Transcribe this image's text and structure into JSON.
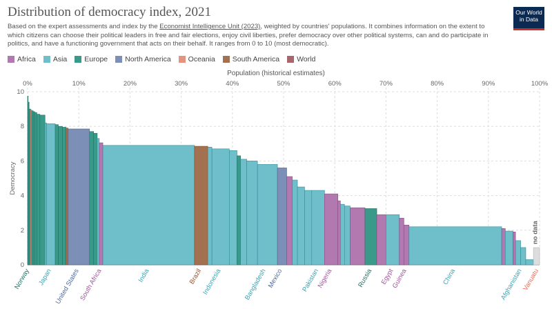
{
  "title": "Distribution of democracy index, 2021",
  "subtitle_before": "Based on the expert assessments and index by the ",
  "subtitle_source": "Economist Intelligence Unit (2023)",
  "subtitle_after": ", weighted by countries' populations. It combines information on the extent to which citizens can choose their political leaders in free and fair elections, enjoy civil liberties, prefer democracy over other political systems, can and do participate in politics, and have a functioning government that acts on their behalf. It ranges from 0 to 10 (most democratic).",
  "logo": {
    "line1": "Our World",
    "line2": "in Data"
  },
  "chart_data": {
    "type": "bar",
    "title": "Distribution of democracy index, 2021",
    "xlabel": "Population (historical estimates)",
    "ylabel": "Democracy",
    "xlim": [
      0,
      100
    ],
    "ylim": [
      0,
      10
    ],
    "x_ticks": [
      "0%",
      "10%",
      "20%",
      "30%",
      "40%",
      "50%",
      "60%",
      "70%",
      "80%",
      "90%",
      "100%"
    ],
    "y_ticks": [
      "0",
      "2",
      "4",
      "6",
      "8",
      "10"
    ],
    "legend": [
      {
        "name": "Africa",
        "color": "#a2559c"
      },
      {
        "name": "Asia",
        "color": "#00847e"
      },
      {
        "name": "Europe",
        "color": "#4c6a9c"
      },
      {
        "name": "North America",
        "color": "#e56e5a"
      },
      {
        "name": "Oceania",
        "color": "#e56e5a"
      },
      {
        "name": "South America",
        "color": "#9a5129"
      },
      {
        "name": "World",
        "color": "#883039"
      }
    ],
    "legend_placement": "top-left",
    "grid": true,
    "no_data_label": "no data",
    "bars": [
      {
        "x0": 0.0,
        "x1": 0.1,
        "value": 9.75,
        "region": "Europe"
      },
      {
        "x0": 0.1,
        "x1": 0.3,
        "value": 9.4,
        "region": "Europe"
      },
      {
        "x0": 0.3,
        "x1": 0.6,
        "value": 9.0,
        "region": "Europe"
      },
      {
        "x0": 0.6,
        "x1": 0.8,
        "value": 8.95,
        "region": "Oceania"
      },
      {
        "x0": 0.8,
        "x1": 1.1,
        "value": 8.9,
        "region": "Europe"
      },
      {
        "x0": 1.1,
        "x1": 1.4,
        "value": 8.85,
        "region": "Europe"
      },
      {
        "x0": 1.4,
        "x1": 1.8,
        "value": 8.8,
        "region": "Europe"
      },
      {
        "x0": 1.8,
        "x1": 2.4,
        "value": 8.7,
        "region": "Europe"
      },
      {
        "x0": 2.4,
        "x1": 3.4,
        "value": 8.65,
        "region": "Europe"
      },
      {
        "x0": 3.4,
        "x1": 3.7,
        "value": 8.2,
        "region": "Asia"
      },
      {
        "x0": 3.7,
        "x1": 5.4,
        "value": 8.15,
        "region": "Asia"
      },
      {
        "x0": 5.4,
        "x1": 6.0,
        "value": 8.1,
        "region": "Europe"
      },
      {
        "x0": 6.0,
        "x1": 6.8,
        "value": 8.0,
        "region": "Europe"
      },
      {
        "x0": 6.8,
        "x1": 7.5,
        "value": 7.95,
        "region": "Europe"
      },
      {
        "x0": 7.5,
        "x1": 7.9,
        "value": 7.9,
        "region": "South America"
      },
      {
        "x0": 7.9,
        "x1": 12.1,
        "value": 7.85,
        "region": "North America"
      },
      {
        "x0": 12.1,
        "x1": 12.9,
        "value": 7.7,
        "region": "Europe"
      },
      {
        "x0": 12.9,
        "x1": 13.6,
        "value": 7.6,
        "region": "Europe"
      },
      {
        "x0": 13.6,
        "x1": 14.0,
        "value": 7.3,
        "region": "Asia"
      },
      {
        "x0": 14.0,
        "x1": 14.7,
        "value": 7.05,
        "region": "Africa"
      },
      {
        "x0": 14.7,
        "x1": 32.6,
        "value": 6.9,
        "region": "Asia"
      },
      {
        "x0": 32.6,
        "x1": 35.2,
        "value": 6.85,
        "region": "South America"
      },
      {
        "x0": 35.2,
        "x1": 36.0,
        "value": 6.8,
        "region": "Asia"
      },
      {
        "x0": 36.0,
        "x1": 39.4,
        "value": 6.7,
        "region": "Asia"
      },
      {
        "x0": 39.4,
        "x1": 40.9,
        "value": 6.6,
        "region": "Asia"
      },
      {
        "x0": 40.9,
        "x1": 41.6,
        "value": 6.3,
        "region": "Europe"
      },
      {
        "x0": 41.6,
        "x1": 42.8,
        "value": 6.1,
        "region": "Asia"
      },
      {
        "x0": 42.8,
        "x1": 44.9,
        "value": 6.0,
        "region": "Asia"
      },
      {
        "x0": 44.9,
        "x1": 48.8,
        "value": 5.8,
        "region": "Asia"
      },
      {
        "x0": 48.8,
        "x1": 50.6,
        "value": 5.6,
        "region": "North America"
      },
      {
        "x0": 50.6,
        "x1": 51.7,
        "value": 5.1,
        "region": "Africa"
      },
      {
        "x0": 51.7,
        "x1": 52.7,
        "value": 4.9,
        "region": "Asia"
      },
      {
        "x0": 52.7,
        "x1": 54.1,
        "value": 4.5,
        "region": "Asia"
      },
      {
        "x0": 54.1,
        "x1": 55.5,
        "value": 4.3,
        "region": "Asia"
      },
      {
        "x0": 55.5,
        "x1": 58.0,
        "value": 4.3,
        "region": "Asia"
      },
      {
        "x0": 58.0,
        "x1": 60.6,
        "value": 4.1,
        "region": "Africa"
      },
      {
        "x0": 60.6,
        "x1": 61.1,
        "value": 3.7,
        "region": "Africa"
      },
      {
        "x0": 61.1,
        "x1": 61.9,
        "value": 3.5,
        "region": "Asia"
      },
      {
        "x0": 61.9,
        "x1": 63.0,
        "value": 3.4,
        "region": "Asia"
      },
      {
        "x0": 63.0,
        "x1": 65.9,
        "value": 3.3,
        "region": "Africa"
      },
      {
        "x0": 65.9,
        "x1": 68.2,
        "value": 3.25,
        "region": "Europe"
      },
      {
        "x0": 68.2,
        "x1": 70.0,
        "value": 2.9,
        "region": "Africa"
      },
      {
        "x0": 70.0,
        "x1": 72.6,
        "value": 2.9,
        "region": "Asia"
      },
      {
        "x0": 72.6,
        "x1": 73.5,
        "value": 2.7,
        "region": "Africa"
      },
      {
        "x0": 73.5,
        "x1": 74.5,
        "value": 2.3,
        "region": "Africa"
      },
      {
        "x0": 74.5,
        "x1": 92.6,
        "value": 2.2,
        "region": "Asia"
      },
      {
        "x0": 92.6,
        "x1": 93.3,
        "value": 2.1,
        "region": "Africa"
      },
      {
        "x0": 93.3,
        "x1": 94.8,
        "value": 1.95,
        "region": "Asia"
      },
      {
        "x0": 94.8,
        "x1": 95.3,
        "value": 1.9,
        "region": "Africa"
      },
      {
        "x0": 95.3,
        "x1": 96.3,
        "value": 1.4,
        "region": "Asia"
      },
      {
        "x0": 96.3,
        "x1": 97.3,
        "value": 1.0,
        "region": "Asia"
      },
      {
        "x0": 97.3,
        "x1": 98.8,
        "value": 0.3,
        "region": "Asia"
      },
      {
        "x0": 98.8,
        "x1": 100.0,
        "value": 0.0,
        "region": "No data"
      }
    ],
    "country_labels": [
      {
        "name": "Norway",
        "x": 0.3,
        "region": "Europe"
      },
      {
        "name": "Japan",
        "x": 4.6,
        "region": "Asia"
      },
      {
        "name": "United States",
        "x": 10.0,
        "region": "North America"
      },
      {
        "name": "South Africa",
        "x": 14.4,
        "region": "Africa"
      },
      {
        "name": "India",
        "x": 23.7,
        "region": "Asia"
      },
      {
        "name": "Brazil",
        "x": 33.9,
        "region": "South America"
      },
      {
        "name": "Indonesia",
        "x": 37.7,
        "region": "Asia"
      },
      {
        "name": "Bangladesh",
        "x": 46.5,
        "region": "Asia"
      },
      {
        "name": "Mexico",
        "x": 49.7,
        "region": "North America"
      },
      {
        "name": "Pakistan",
        "x": 56.8,
        "region": "Asia"
      },
      {
        "name": "Nigeria",
        "x": 59.4,
        "region": "Africa"
      },
      {
        "name": "Russia",
        "x": 67.2,
        "region": "Europe"
      },
      {
        "name": "Egypt",
        "x": 71.4,
        "region": "Africa"
      },
      {
        "name": "Guinea",
        "x": 74.0,
        "region": "Africa"
      },
      {
        "name": "China",
        "x": 83.5,
        "region": "Asia"
      },
      {
        "name": "Afghanistan",
        "x": 96.5,
        "region": "Asia"
      },
      {
        "name": "Vanuatu",
        "x": 99.8,
        "region": "Oceania"
      }
    ]
  }
}
